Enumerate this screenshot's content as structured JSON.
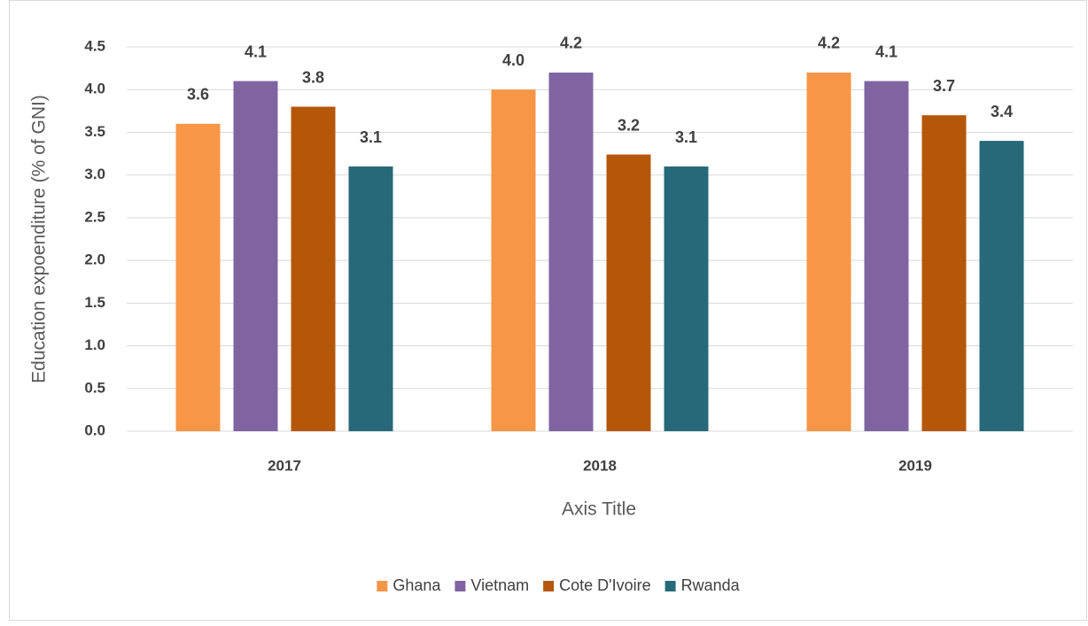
{
  "chart_data": {
    "type": "bar",
    "categories": [
      "2017",
      "2018",
      "2019"
    ],
    "series": [
      {
        "name": "Ghana",
        "color": "#f79646",
        "values": [
          3.6,
          4.0,
          4.2
        ],
        "value_labels": [
          "3.6",
          "4.0",
          "4.2"
        ]
      },
      {
        "name": "Vietnam",
        "color": "#8064a2",
        "values": [
          4.1,
          4.2,
          4.1
        ],
        "value_labels": [
          "4.1",
          "4.2",
          "4.1"
        ]
      },
      {
        "name": "Cote D'Ivoire",
        "color": "#b55708",
        "values": [
          3.8,
          3.24,
          3.7
        ],
        "value_labels": [
          "3.8",
          "3.2",
          "3.7"
        ]
      },
      {
        "name": "Rwanda",
        "color": "#276978",
        "values": [
          3.1,
          3.1,
          3.4
        ],
        "value_labels": [
          "3.1",
          "3.1",
          "3.4"
        ]
      }
    ],
    "xlabel": "Axis Title",
    "ylabel": "Education expoenditure (% of GNI)",
    "ylim": [
      0,
      4.5
    ],
    "yticks": [
      {
        "value": 0,
        "label": "0.0"
      },
      0.5,
      {
        "value": 1,
        "label": "1.0"
      },
      1.5,
      {
        "value": 2,
        "label": "2.0"
      },
      2.5,
      {
        "value": 3,
        "label": "3.0"
      },
      3.5,
      {
        "value": 4,
        "label": "4.0"
      },
      4.5
    ],
    "grid": true,
    "legend": "bottom"
  }
}
